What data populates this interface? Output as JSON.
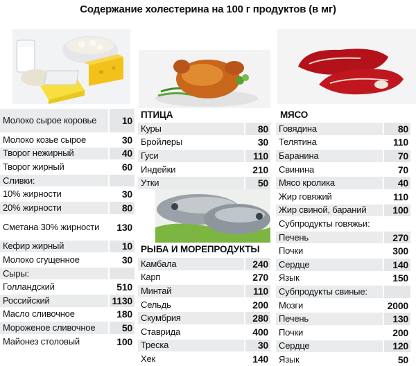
{
  "title": "Содержание холестерина на 100 г продуктов (в мг)",
  "dairy": [
    {
      "name": "Молоко сырое коровье",
      "value": "10",
      "wrap": true
    },
    {
      "name": "Молоко козье сырое",
      "value": "30"
    },
    {
      "name": "Творог нежирный",
      "value": "40"
    },
    {
      "name": "Творог жирный",
      "value": "60"
    },
    {
      "name": "Сливки:",
      "value": ""
    },
    {
      "name": "10% жирности",
      "value": "30"
    },
    {
      "name": "20% жирности",
      "value": "80"
    },
    {
      "name": "Сметана 30% жирности",
      "value": "130",
      "wrap": true
    },
    {
      "name": "Кефир жирный",
      "value": "10"
    },
    {
      "name": "Молоко сгущенное",
      "value": "30"
    },
    {
      "name": "Сыры:",
      "value": ""
    },
    {
      "name": "Голландский",
      "value": "510"
    },
    {
      "name": "Российский",
      "value": "1130"
    },
    {
      "name": "Масло сливочное",
      "value": "180"
    },
    {
      "name": "Мороженое сливочное",
      "value": "50"
    },
    {
      "name": "Майонез столовый",
      "value": "100"
    }
  ],
  "poultry": {
    "heading": "ПТИЦА",
    "items": [
      {
        "name": "Куры",
        "value": "80"
      },
      {
        "name": "Бройлеры",
        "value": "30"
      },
      {
        "name": "Гуси",
        "value": "110"
      },
      {
        "name": "Индейки",
        "value": "210"
      },
      {
        "name": "Утки",
        "value": "50"
      }
    ]
  },
  "fish": {
    "heading": "РЫБА И МОРЕПРОДУКТЫ",
    "items": [
      {
        "name": "Камбала",
        "value": "240"
      },
      {
        "name": "Карп",
        "value": "270"
      },
      {
        "name": "Минтай",
        "value": "110"
      },
      {
        "name": "Сельдь",
        "value": "200"
      },
      {
        "name": "Скумбрия",
        "value": "280"
      },
      {
        "name": "Ставрида",
        "value": "400"
      },
      {
        "name": "Треска",
        "value": "30"
      },
      {
        "name": "Хек",
        "value": "140"
      }
    ]
  },
  "meat": {
    "heading": "МЯСО",
    "items": [
      {
        "name": "Говядина",
        "value": "80"
      },
      {
        "name": "Телятина",
        "value": "110"
      },
      {
        "name": "Баранина",
        "value": "70"
      },
      {
        "name": "Свинина",
        "value": "70"
      },
      {
        "name": "Мясо кролика",
        "value": "40"
      },
      {
        "name": "Жир говяжий",
        "value": "110"
      },
      {
        "name": "Жир свиной, бараний",
        "value": "100"
      },
      {
        "name": "Субпродукты говяжьи:",
        "value": ""
      },
      {
        "name": "Печень",
        "value": "270"
      },
      {
        "name": "Почки",
        "value": "300"
      },
      {
        "name": "Сердце",
        "value": "140"
      },
      {
        "name": "Язык",
        "value": "150"
      },
      {
        "name": "Субпродукты свиные:",
        "value": ""
      },
      {
        "name": "Мозги",
        "value": "2000"
      },
      {
        "name": "Печень",
        "value": "130"
      },
      {
        "name": "Почки",
        "value": "200"
      },
      {
        "name": "Сердце",
        "value": "120"
      },
      {
        "name": "Язык",
        "value": "50"
      }
    ]
  }
}
